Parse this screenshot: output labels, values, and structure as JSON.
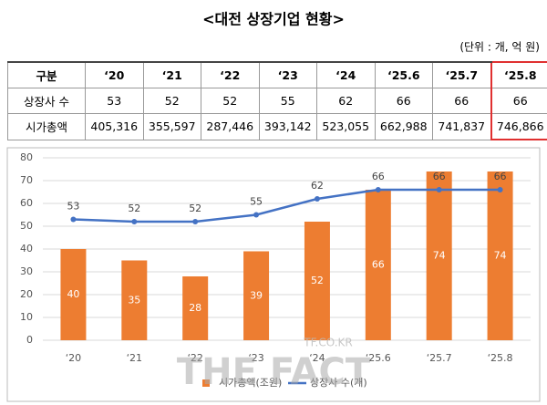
{
  "title": "<대전 상장기업 현황>",
  "unit": "(단위 : 개, 억 원)",
  "table": {
    "header": [
      "구분",
      "‘20",
      "‘21",
      "‘22",
      "‘23",
      "‘24",
      "‘25.6",
      "‘25.7",
      "‘25.8"
    ],
    "rows": [
      [
        "상장사 수",
        "53",
        "52",
        "52",
        "55",
        "62",
        "66",
        "66",
        "66"
      ],
      [
        "시가총액",
        "405,316",
        "355,597",
        "287,446",
        "393,142",
        "523,055",
        "662,988",
        "741,837",
        "746,866"
      ]
    ]
  },
  "chart_data": {
    "type": "bar",
    "categories": [
      "‘20",
      "‘21",
      "‘22",
      "‘23",
      "‘24",
      "‘25.6",
      "‘25.7",
      "‘25.8"
    ],
    "series": [
      {
        "name": "시가총액(조원)",
        "type": "bar",
        "color": "#ed7d31",
        "values": [
          40,
          35,
          28,
          39,
          52,
          66,
          74,
          74
        ]
      },
      {
        "name": "상장사 수(개)",
        "type": "line",
        "color": "#4472c4",
        "values": [
          53,
          52,
          52,
          55,
          62,
          66,
          66,
          66
        ]
      }
    ],
    "ylim": [
      0,
      80
    ],
    "yticks": [
      0,
      10,
      20,
      30,
      40,
      50,
      60,
      70,
      80
    ],
    "grid": true
  },
  "watermark": [
    "TF.CO.KR",
    "THE FACT"
  ]
}
